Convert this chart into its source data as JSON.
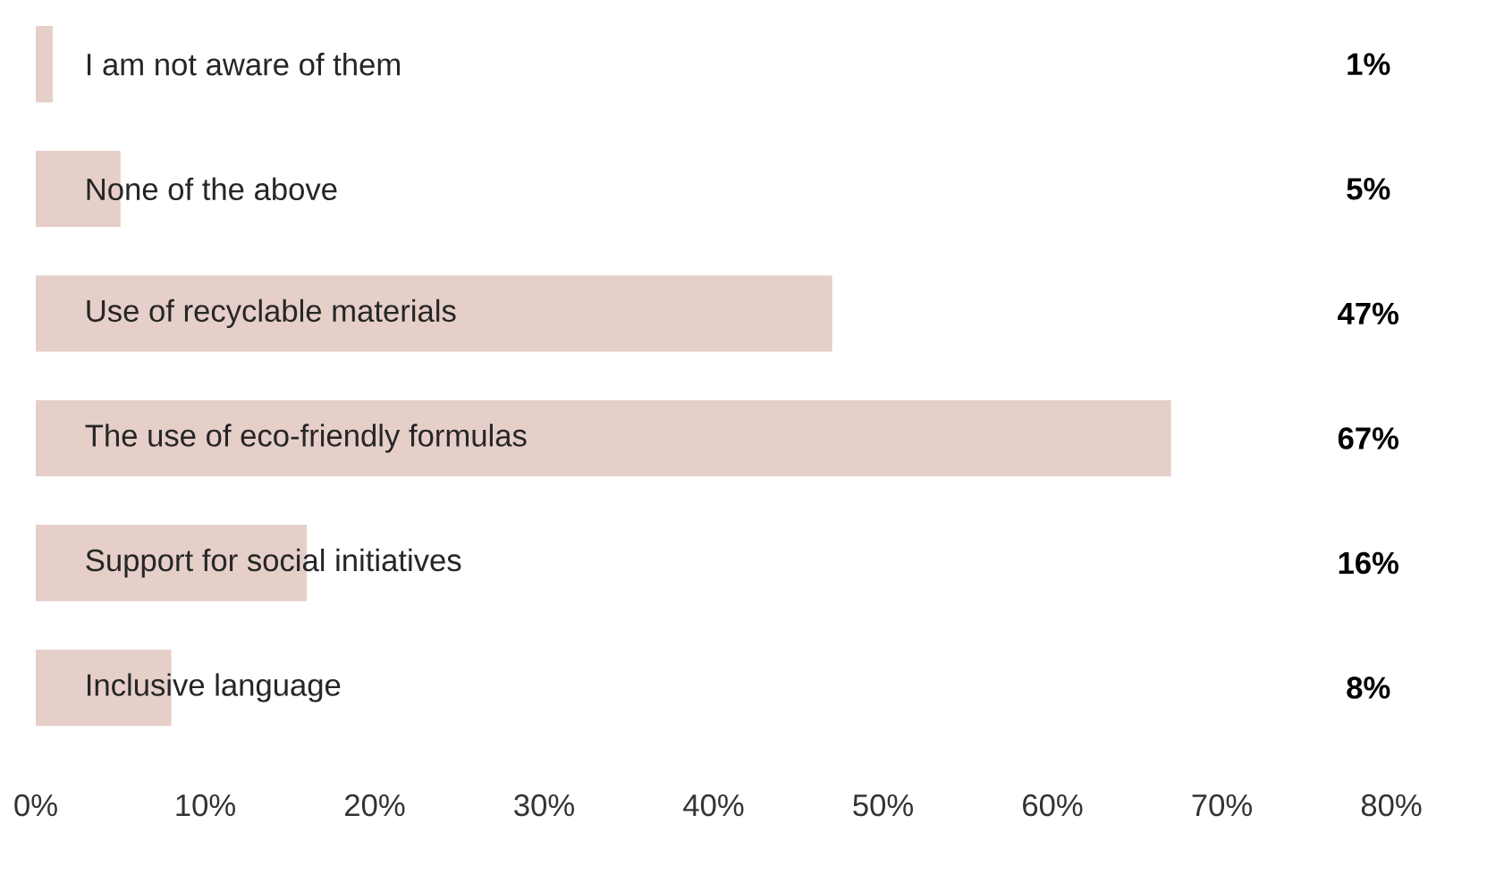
{
  "chart_data": {
    "type": "bar",
    "orientation": "horizontal",
    "categories": [
      "I am not aware of them",
      "None of the above",
      "Use of recyclable materials",
      "The use of eco-friendly formulas",
      "Support for social initiatives",
      "Inclusive language"
    ],
    "values": [
      1,
      5,
      47,
      67,
      16,
      8
    ],
    "value_labels": [
      "1%",
      "5%",
      "47%",
      "67%",
      "16%",
      "8%"
    ],
    "color": "#e5cfc8",
    "xlim": [
      0,
      80
    ],
    "xticks": [
      {
        "value": 0,
        "label": "0%"
      },
      {
        "value": 10,
        "label": "10%"
      },
      {
        "value": 20,
        "label": "20%"
      },
      {
        "value": 30,
        "label": "30%"
      },
      {
        "value": 40,
        "label": "40%"
      },
      {
        "value": 50,
        "label": "50%"
      },
      {
        "value": 60,
        "label": "60%"
      },
      {
        "value": 70,
        "label": "70%"
      },
      {
        "value": 80,
        "label": "80%"
      }
    ]
  }
}
